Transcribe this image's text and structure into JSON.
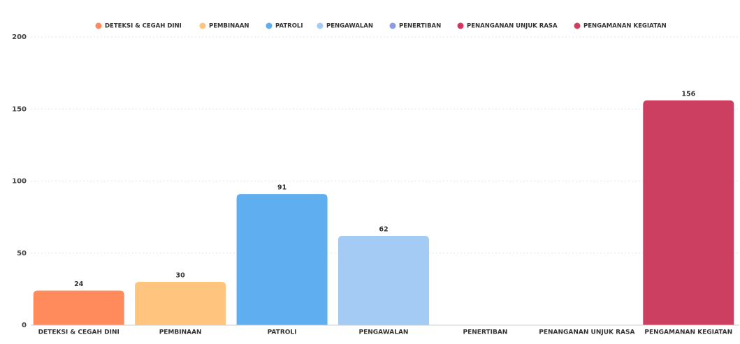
{
  "chart_data": {
    "type": "bar",
    "categories": [
      "DETEKSI & CEGAH DINI",
      "PEMBINAAN",
      "PATROLI",
      "PENGAWALAN",
      "PENERTIBAN",
      "PENANGANAN UNJUK RASA",
      "PENGAMANAN KEGIATAN"
    ],
    "values": [
      24,
      30,
      91,
      62,
      null,
      null,
      156
    ],
    "colors": [
      "#ff8a5b",
      "#ffc47e",
      "#5eaef0",
      "#a3cbf4",
      "#8a9ce6",
      "#d8345f",
      "#cc3f60"
    ],
    "ylim": [
      0,
      200
    ],
    "yticks": [
      0,
      50,
      100,
      150,
      200
    ],
    "grid": true,
    "legend": "top"
  }
}
